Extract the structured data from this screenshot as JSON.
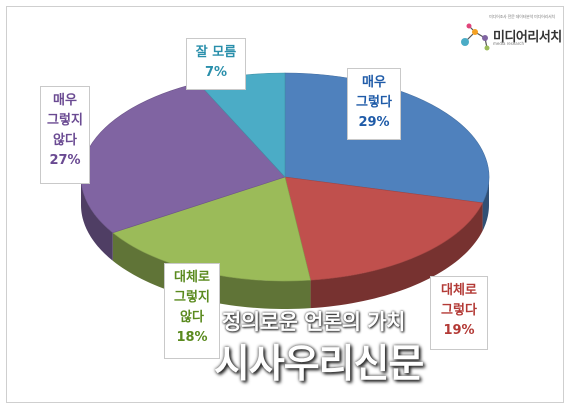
{
  "brand": {
    "tagline": "미디어조사 전문 데이터분석 미디어리서치",
    "name": "미디어리서치",
    "sub": "media research"
  },
  "watermark": {
    "line1": "정의로운 언론의 가치",
    "line2": "시사우리신문"
  },
  "colors": {
    "very_agree": "#4f81bd",
    "agree": "#c0504d",
    "disagree": "#9bbb59",
    "very_disagree": "#8064a2",
    "unknown": "#4bacc6"
  },
  "chart_data": {
    "type": "pie",
    "title": "",
    "slices": [
      {
        "label_lines": [
          "매우",
          "그렇다"
        ],
        "percent_label": "29%",
        "value": 29,
        "color": "#4f81bd"
      },
      {
        "label_lines": [
          "대체로",
          "그렇다"
        ],
        "percent_label": "19%",
        "value": 19,
        "color": "#c0504d"
      },
      {
        "label_lines": [
          "대체로",
          "그렇지",
          "않다"
        ],
        "percent_label": "18%",
        "value": 18,
        "color": "#9bbb59"
      },
      {
        "label_lines": [
          "매우",
          "그렇지",
          "않다"
        ],
        "percent_label": "27%",
        "value": 27,
        "color": "#8064a2"
      },
      {
        "label_lines": [
          "잘 모름"
        ],
        "percent_label": "7%",
        "value": 7,
        "color": "#4bacc6"
      }
    ]
  }
}
